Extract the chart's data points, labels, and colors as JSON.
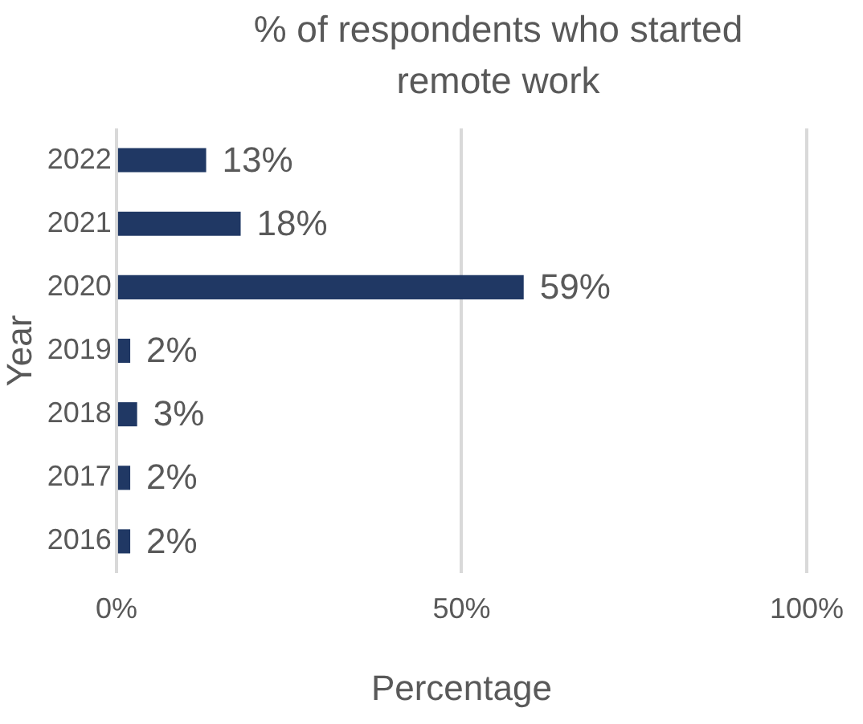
{
  "chart_data": {
    "type": "bar",
    "orientation": "horizontal",
    "title": "% of respondents who started remote work",
    "xlabel": "Percentage",
    "ylabel": "Year",
    "categories": [
      "2022",
      "2021",
      "2020",
      "2019",
      "2018",
      "2017",
      "2016"
    ],
    "values": [
      13,
      18,
      59,
      2,
      3,
      2,
      2
    ],
    "value_labels": [
      "13%",
      "18%",
      "59%",
      "2%",
      "3%",
      "2%",
      "2%"
    ],
    "color": "#203864",
    "xlim": [
      0,
      100
    ],
    "xticks": [
      {
        "value": 0,
        "label": "0%"
      },
      {
        "value": 50,
        "label": "50%"
      },
      {
        "value": 100,
        "label": "100%"
      }
    ],
    "grid": "x",
    "legend": false
  }
}
